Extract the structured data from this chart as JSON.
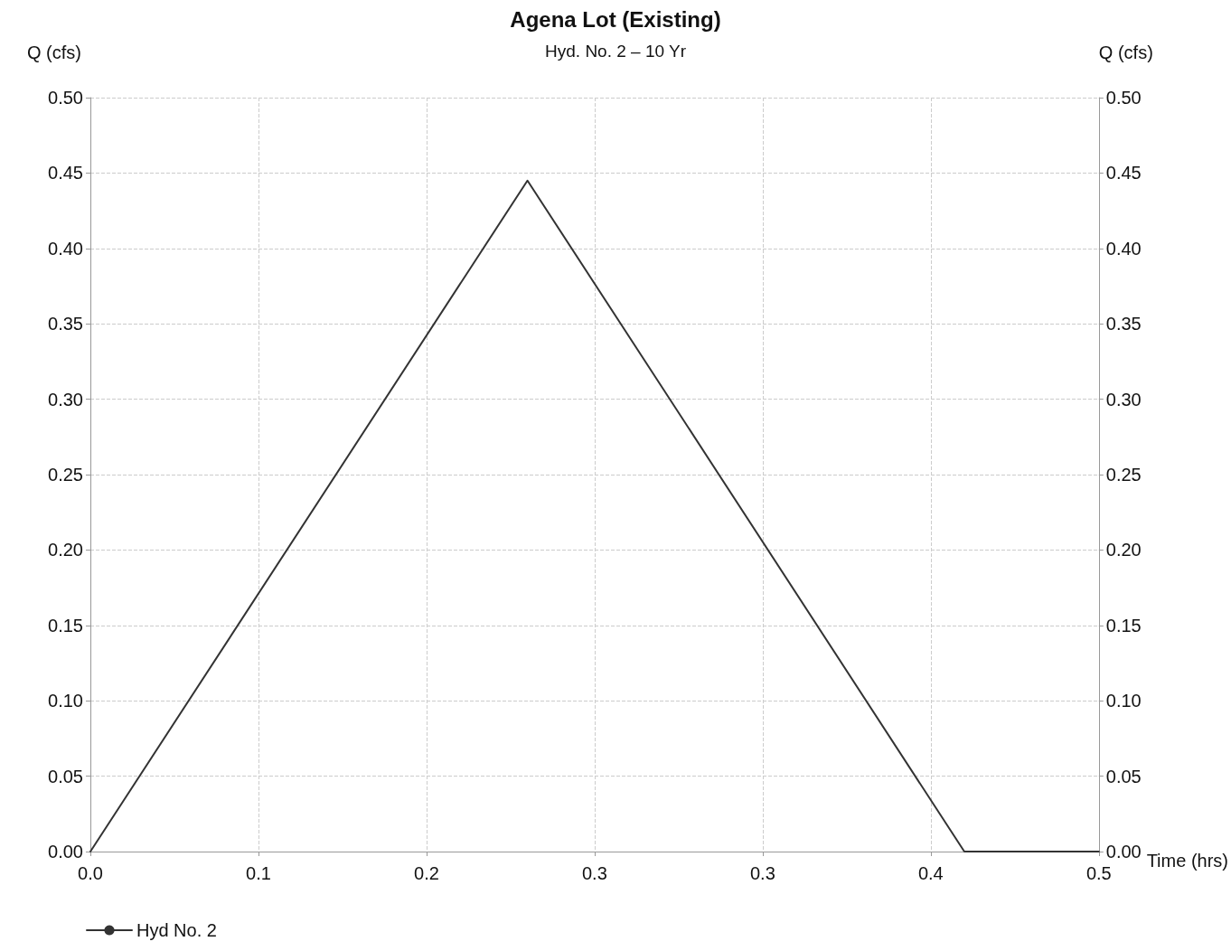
{
  "chart_data": {
    "type": "line",
    "title": "Agena Lot (Existing)",
    "subtitle": "Hyd. No. 2 – 10 Yr",
    "xlabel": "Time (hrs)",
    "ylabel": "Q (cfs)",
    "y2label": "Q (cfs)",
    "x": [
      0,
      0.2167,
      0.4333,
      0.5
    ],
    "series": [
      {
        "name": "Hyd No. 2",
        "color": "#333333",
        "values": [
          0,
          0.445,
          0,
          0
        ]
      }
    ],
    "xlim": [
      0,
      0.5
    ],
    "xticks": [
      {
        "value": 0,
        "label": "0.0"
      },
      {
        "value": 0.08333,
        "label": "0.1"
      },
      {
        "value": 0.16667,
        "label": "0.2"
      },
      {
        "value": 0.25,
        "label": "0.3"
      },
      {
        "value": 0.33333,
        "label": "0.3"
      },
      {
        "value": 0.41667,
        "label": "0.4"
      },
      {
        "value": 0.5,
        "label": "0.5"
      }
    ],
    "ylim": [
      0,
      0.5
    ],
    "yticks": [
      {
        "value": 0,
        "label": "0.00"
      },
      {
        "value": 0.05,
        "label": "0.05"
      },
      {
        "value": 0.1,
        "label": "0.10"
      },
      {
        "value": 0.15,
        "label": "0.15"
      },
      {
        "value": 0.2,
        "label": "0.20"
      },
      {
        "value": 0.25,
        "label": "0.25"
      },
      {
        "value": 0.3,
        "label": "0.30"
      },
      {
        "value": 0.35,
        "label": "0.35"
      },
      {
        "value": 0.4,
        "label": "0.40"
      },
      {
        "value": 0.45,
        "label": "0.45"
      },
      {
        "value": 0.5,
        "label": "0.50"
      }
    ],
    "y2lim": [
      0,
      0.5
    ],
    "y2ticks": [
      {
        "value": 0,
        "label": "0.00"
      },
      {
        "value": 0.05,
        "label": "0.05"
      },
      {
        "value": 0.1,
        "label": "0.10"
      },
      {
        "value": 0.15,
        "label": "0.15"
      },
      {
        "value": 0.2,
        "label": "0.20"
      },
      {
        "value": 0.25,
        "label": "0.25"
      },
      {
        "value": 0.3,
        "label": "0.30"
      },
      {
        "value": 0.35,
        "label": "0.35"
      },
      {
        "value": 0.4,
        "label": "0.40"
      },
      {
        "value": 0.45,
        "label": "0.45"
      },
      {
        "value": 0.5,
        "label": "0.50"
      }
    ],
    "grid": true,
    "legend": "bottom left",
    "marker": "none",
    "line_style": "solid"
  }
}
